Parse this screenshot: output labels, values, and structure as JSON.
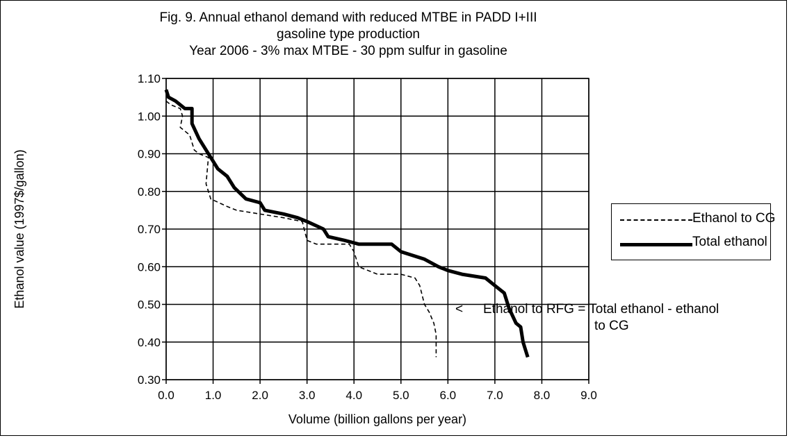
{
  "chart_data": {
    "type": "line",
    "title": [
      "Fig. 9.  Annual ethanol demand with reduced MTBE in PADD I+III",
      "gasoline type production",
      "Year 2006 - 3% max MTBE - 30 ppm sulfur in gasoline"
    ],
    "xlabel": "Volume (billion gallons per year)",
    "ylabel": "Ethanol value (1997$/gallon)",
    "xlim": [
      0,
      9
    ],
    "ylim": [
      0.3,
      1.1
    ],
    "xticks": [
      "0.0",
      "1.0",
      "2.0",
      "3.0",
      "4.0",
      "5.0",
      "6.0",
      "7.0",
      "8.0",
      "9.0"
    ],
    "yticks": [
      "0.30",
      "0.40",
      "0.50",
      "0.60",
      "0.70",
      "0.80",
      "0.90",
      "1.00",
      "1.10"
    ],
    "grid": true,
    "legend_position": "right",
    "series": [
      {
        "name": "Ethanol to CG",
        "style": "dashed",
        "color": "#000000",
        "points": [
          [
            0.0,
            1.04
          ],
          [
            0.1,
            1.03
          ],
          [
            0.3,
            1.02
          ],
          [
            0.35,
            1.0
          ],
          [
            0.3,
            0.97
          ],
          [
            0.5,
            0.95
          ],
          [
            0.6,
            0.91
          ],
          [
            0.7,
            0.9
          ],
          [
            0.9,
            0.89
          ],
          [
            0.85,
            0.82
          ],
          [
            0.95,
            0.78
          ],
          [
            1.3,
            0.76
          ],
          [
            1.5,
            0.75
          ],
          [
            2.0,
            0.74
          ],
          [
            2.5,
            0.73
          ],
          [
            2.9,
            0.72
          ],
          [
            3.0,
            0.67
          ],
          [
            3.2,
            0.66
          ],
          [
            3.5,
            0.66
          ],
          [
            3.9,
            0.66
          ],
          [
            4.0,
            0.64
          ],
          [
            4.1,
            0.6
          ],
          [
            4.5,
            0.58
          ],
          [
            5.0,
            0.58
          ],
          [
            5.3,
            0.57
          ],
          [
            5.4,
            0.55
          ],
          [
            5.5,
            0.5
          ],
          [
            5.6,
            0.48
          ],
          [
            5.7,
            0.45
          ],
          [
            5.75,
            0.42
          ],
          [
            5.75,
            0.36
          ]
        ]
      },
      {
        "name": "Total ethanol",
        "style": "solid",
        "color": "#000000",
        "points": [
          [
            0.0,
            1.07
          ],
          [
            0.05,
            1.05
          ],
          [
            0.2,
            1.04
          ],
          [
            0.4,
            1.02
          ],
          [
            0.55,
            1.02
          ],
          [
            0.55,
            0.98
          ],
          [
            0.7,
            0.94
          ],
          [
            0.85,
            0.91
          ],
          [
            1.0,
            0.88
          ],
          [
            1.1,
            0.86
          ],
          [
            1.3,
            0.84
          ],
          [
            1.45,
            0.81
          ],
          [
            1.7,
            0.78
          ],
          [
            2.0,
            0.77
          ],
          [
            2.1,
            0.75
          ],
          [
            2.5,
            0.74
          ],
          [
            2.8,
            0.73
          ],
          [
            3.0,
            0.72
          ],
          [
            3.35,
            0.7
          ],
          [
            3.45,
            0.68
          ],
          [
            3.8,
            0.67
          ],
          [
            4.1,
            0.66
          ],
          [
            4.8,
            0.66
          ],
          [
            5.0,
            0.64
          ],
          [
            5.5,
            0.62
          ],
          [
            5.8,
            0.6
          ],
          [
            6.0,
            0.59
          ],
          [
            6.3,
            0.58
          ],
          [
            6.8,
            0.57
          ],
          [
            7.0,
            0.55
          ],
          [
            7.2,
            0.53
          ],
          [
            7.3,
            0.49
          ],
          [
            7.45,
            0.45
          ],
          [
            7.55,
            0.44
          ],
          [
            7.6,
            0.4
          ],
          [
            7.7,
            0.36
          ]
        ]
      }
    ],
    "annotation": {
      "arrow": "<",
      "line1": "Ethanol to RFG = Total ethanol - ethanol",
      "line2": "to CG"
    }
  }
}
